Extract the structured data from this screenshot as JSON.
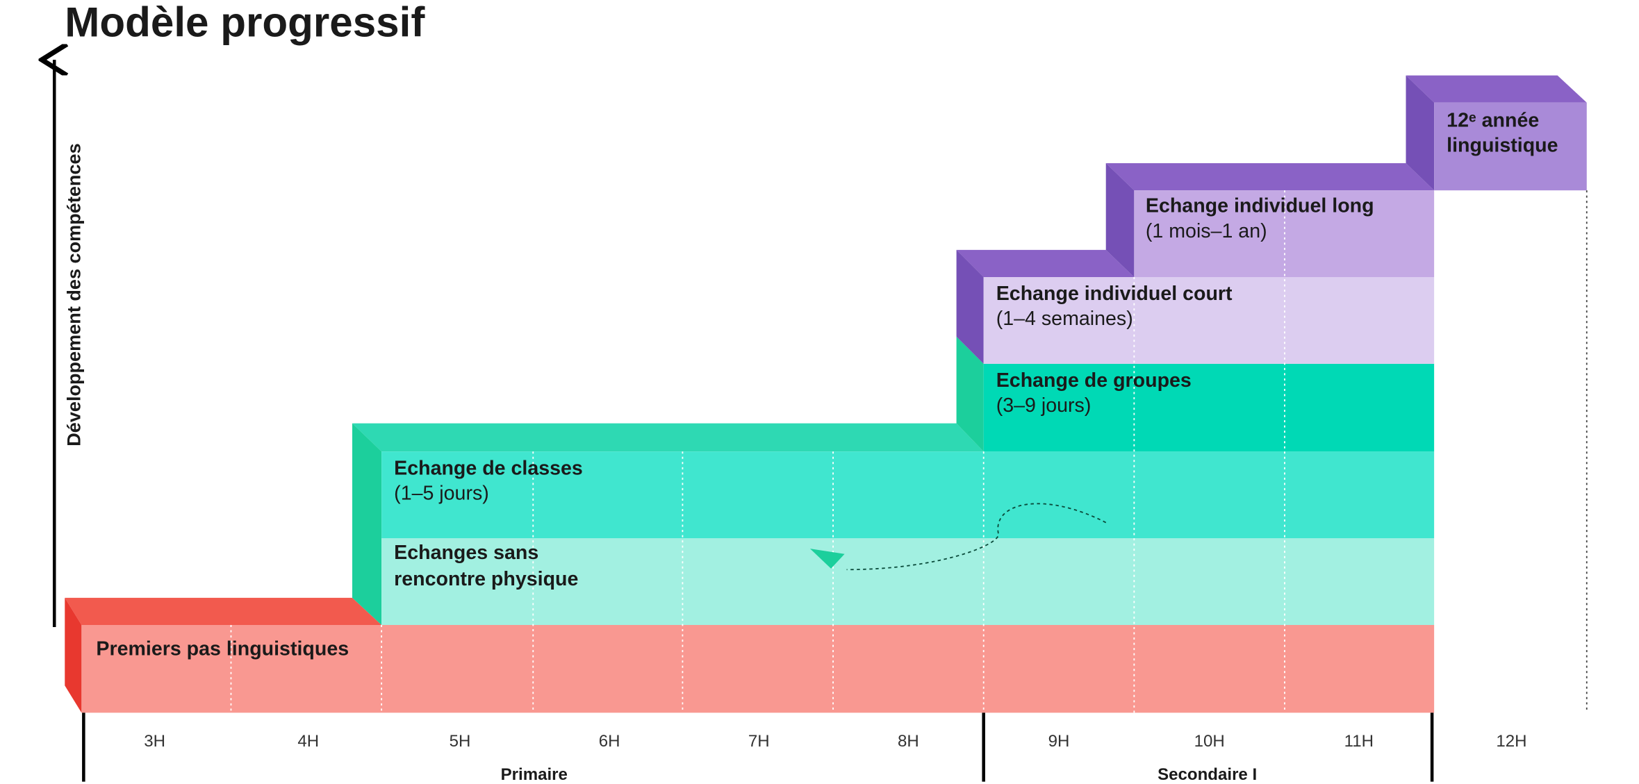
{
  "title": "Modèle progressif",
  "y_axis_label": "Développement des compétences",
  "levels": [
    {
      "lines": [
        "Premiers pas linguistiques"
      ]
    },
    {
      "lines": [
        "Echanges sans",
        "rencontre physique"
      ]
    },
    {
      "lines": [
        "Echange de classes",
        "(1–5 jours)"
      ]
    },
    {
      "lines": [
        "Echange de groupes",
        "(3–9 jours)"
      ]
    },
    {
      "lines": [
        "Echange individuel court",
        "(1–4 semaines)"
      ]
    },
    {
      "lines": [
        "Echange individuel long",
        "(1 mois–1 an)"
      ]
    },
    {
      "lines": [
        "12ᵉ année",
        "linguistique"
      ]
    }
  ],
  "grades": [
    "3H",
    "4H",
    "5H",
    "6H",
    "7H",
    "8H",
    "9H",
    "10H",
    "11H",
    "12H"
  ],
  "school_levels": [
    "Primaire",
    "Secondaire I"
  ]
}
